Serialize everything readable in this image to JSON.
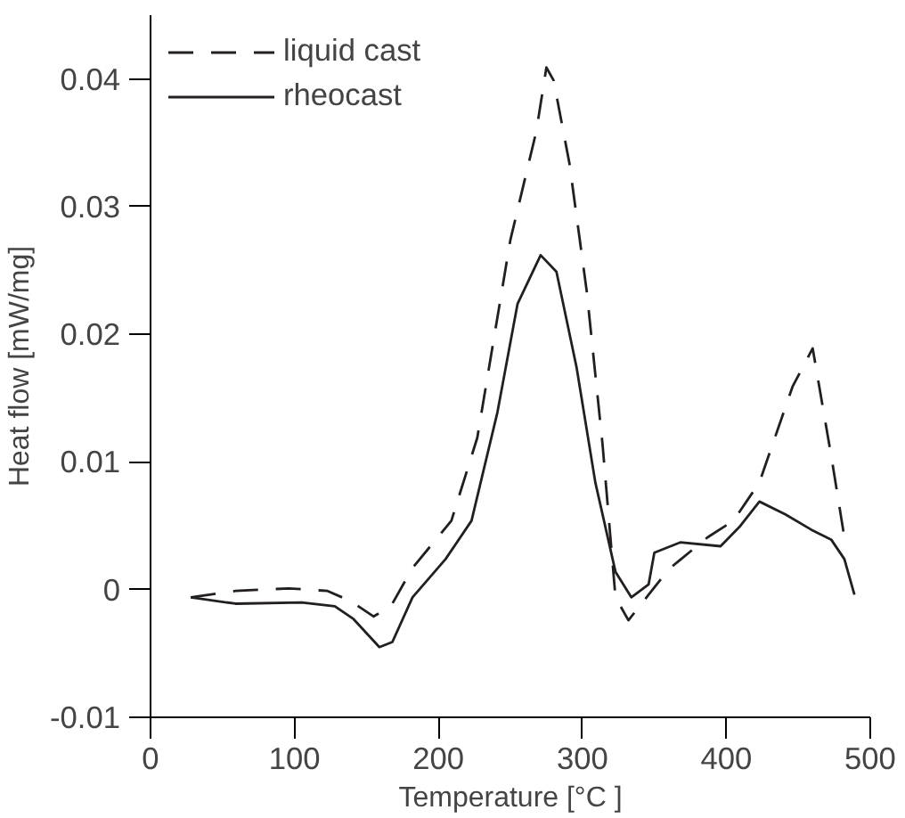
{
  "chart_data": {
    "type": "line",
    "xlabel": "Temperature [°C ]",
    "ylabel": "Heat flow [mW/mg]",
    "xlim": [
      0,
      500
    ],
    "xticks": [
      0,
      100,
      200,
      300,
      400,
      500
    ],
    "ylim": [
      -0.01,
      0.045
    ],
    "yticks": [
      -0.01,
      0,
      0.01,
      0.02,
      0.03,
      0.04
    ],
    "grid": false,
    "legend": "top left",
    "series": [
      {
        "name": "liquid cast",
        "color": "#231f20",
        "line_style": "dashed",
        "x": [
          28,
          59,
          96,
          123,
          139,
          155,
          167,
          182,
          209,
          227,
          250,
          268,
          275,
          280,
          291,
          303,
          314,
          323,
          332,
          346,
          360,
          387,
          405,
          423,
          446,
          460,
          473,
          482
        ],
        "values": [
          -0.0006,
          -0.0001,
          0.0001,
          -0.0001,
          -0.0009,
          -0.0021,
          -0.0013,
          0.0017,
          0.0054,
          0.0119,
          0.0274,
          0.0359,
          0.0409,
          0.0399,
          0.0334,
          0.0234,
          0.0114,
          -0.0006,
          -0.0024,
          -0.0004,
          0.0016,
          0.0041,
          0.0054,
          0.0084,
          0.0159,
          0.0189,
          0.0104,
          0.0041
        ]
      },
      {
        "name": "rheocast",
        "color": "#231f20",
        "line_style": "solid",
        "x": [
          28,
          59,
          105,
          128,
          141,
          159,
          168,
          182,
          205,
          223,
          241,
          255,
          271,
          282,
          296,
          309,
          323,
          334,
          346,
          350,
          368,
          396,
          409,
          423,
          441,
          459,
          473,
          482,
          489
        ],
        "values": [
          -0.0006,
          -0.0011,
          -0.001,
          -0.0013,
          -0.0023,
          -0.0045,
          -0.0041,
          -0.0006,
          0.0024,
          0.0054,
          0.0139,
          0.0224,
          0.0262,
          0.0249,
          0.0174,
          0.0084,
          0.0014,
          -0.0006,
          0.0004,
          0.0029,
          0.0037,
          0.0034,
          0.0049,
          0.0069,
          0.0059,
          0.0047,
          0.0039,
          0.0024,
          -0.0004
        ]
      }
    ]
  }
}
